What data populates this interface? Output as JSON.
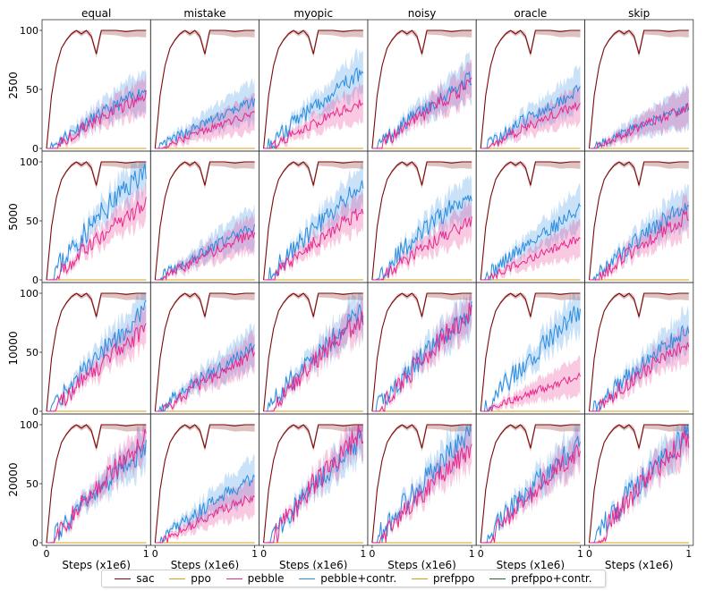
{
  "chart_data": {
    "type": "line",
    "layout": "grid",
    "column_titles": [
      "equal",
      "mistake",
      "myopic",
      "noisy",
      "oracle",
      "skip"
    ],
    "row_labels": [
      "2500",
      "5000",
      "10000",
      "20000"
    ],
    "xlabel": "Steps (x1e6)",
    "xlim": [
      0,
      1
    ],
    "ylim": [
      0,
      100
    ],
    "x_ticks": [
      "0",
      "1"
    ],
    "y_ticks": [
      "0",
      "50",
      "100"
    ],
    "legend": {
      "position": "bottom",
      "entries": [
        {
          "name": "sac",
          "color": "#7b0a0a"
        },
        {
          "name": "ppo",
          "color": "#d4a017"
        },
        {
          "name": "pebble",
          "color": "#e8288c"
        },
        {
          "name": "pebble+contr.",
          "color": "#2b8ce0"
        },
        {
          "name": "prefppo",
          "color": "#c8a010"
        },
        {
          "name": "prefppo+contr.",
          "color": "#1f6b1f"
        }
      ]
    },
    "series_info": {
      "sac": {
        "x": [
          0,
          0.05,
          0.1,
          0.15,
          0.2,
          0.25,
          0.3,
          0.35,
          0.4,
          0.45,
          0.5,
          0.55,
          0.6,
          0.7,
          0.8,
          0.9,
          1.0
        ],
        "values": [
          0,
          45,
          70,
          85,
          92,
          97,
          100,
          97,
          100,
          95,
          80,
          100,
          100,
          100,
          99,
          100,
          100
        ]
      },
      "ppo": {
        "values_const": 0
      },
      "prefppo": {
        "values_const": 0
      },
      "prefppo_contr": {
        "values_const": 0
      }
    },
    "panels": [
      [
        {
          "pebble_final": 45,
          "contr_final": 50
        },
        {
          "pebble_final": 30,
          "contr_final": 40
        },
        {
          "pebble_final": 40,
          "contr_final": 65
        },
        {
          "pebble_final": 55,
          "contr_final": 60
        },
        {
          "pebble_final": 38,
          "contr_final": 50
        },
        {
          "pebble_final": 35,
          "contr_final": 35
        }
      ],
      [
        {
          "pebble_final": 65,
          "contr_final": 95
        },
        {
          "pebble_final": 40,
          "contr_final": 45
        },
        {
          "pebble_final": 60,
          "contr_final": 80
        },
        {
          "pebble_final": 50,
          "contr_final": 75
        },
        {
          "pebble_final": 35,
          "contr_final": 60
        },
        {
          "pebble_final": 55,
          "contr_final": 65
        }
      ],
      [
        {
          "pebble_final": 70,
          "contr_final": 85
        },
        {
          "pebble_final": 50,
          "contr_final": 55
        },
        {
          "pebble_final": 80,
          "contr_final": 85
        },
        {
          "pebble_final": 85,
          "contr_final": 85
        },
        {
          "pebble_final": 30,
          "contr_final": 85
        },
        {
          "pebble_final": 60,
          "contr_final": 70
        }
      ],
      [
        {
          "pebble_final": 88,
          "contr_final": 80
        },
        {
          "pebble_final": 40,
          "contr_final": 55
        },
        {
          "pebble_final": 95,
          "contr_final": 90
        },
        {
          "pebble_final": 80,
          "contr_final": 95
        },
        {
          "pebble_final": 80,
          "contr_final": 85
        },
        {
          "pebble_final": 90,
          "contr_final": 95
        }
      ]
    ]
  }
}
